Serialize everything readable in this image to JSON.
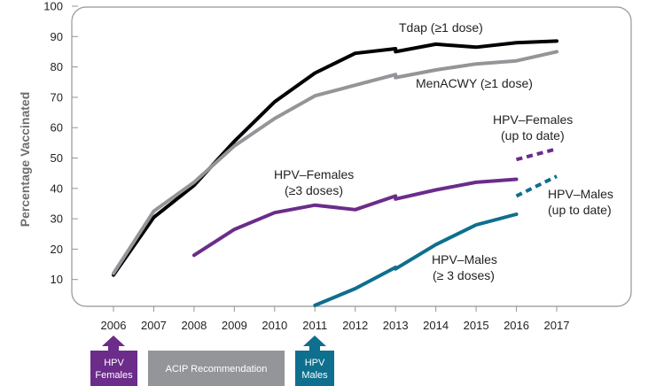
{
  "chart_data": {
    "type": "line",
    "ylabel": "Percentage Vaccinated",
    "ylim": [
      0,
      100
    ],
    "yticks": [
      10,
      20,
      30,
      40,
      50,
      60,
      70,
      80,
      90,
      100
    ],
    "x": [
      2006,
      2007,
      2008,
      2009,
      2010,
      2011,
      2012,
      2013,
      2014,
      2015,
      2016,
      2017
    ],
    "series": [
      {
        "name": "Tdap (≥1 dose)",
        "color": "#000000",
        "dashed": false,
        "segments": [
          [
            [
              2006,
              11.5
            ],
            [
              2007,
              30.5
            ],
            [
              2008,
              41
            ],
            [
              2009,
              55.5
            ],
            [
              2010,
              68.5
            ],
            [
              2011,
              78
            ],
            [
              2012,
              84.5
            ],
            [
              2013,
              86
            ]
          ],
          [
            [
              2013,
              85
            ],
            [
              2014,
              87.5
            ],
            [
              2015,
              86.5
            ],
            [
              2016,
              88
            ],
            [
              2017,
              88.5
            ]
          ]
        ]
      },
      {
        "name": "MenACWY (≥1 dose)",
        "color": "#939598",
        "dashed": false,
        "segments": [
          [
            [
              2006,
              12
            ],
            [
              2007,
              32.5
            ],
            [
              2008,
              42
            ],
            [
              2009,
              54
            ],
            [
              2010,
              63
            ],
            [
              2011,
              70.5
            ],
            [
              2012,
              74
            ],
            [
              2013,
              77.5
            ]
          ],
          [
            [
              2013,
              76.5
            ],
            [
              2014,
              79
            ],
            [
              2015,
              81
            ],
            [
              2016,
              82
            ],
            [
              2017,
              85
            ]
          ]
        ]
      },
      {
        "name": "HPV–Females (≥3 doses)",
        "color": "#6b2c8a",
        "dashed": false,
        "segments": [
          [
            [
              2008,
              18
            ],
            [
              2009,
              26.5
            ],
            [
              2010,
              32
            ],
            [
              2011,
              34.5
            ],
            [
              2012,
              33
            ],
            [
              2013,
              37.5
            ]
          ],
          [
            [
              2013,
              36.5
            ],
            [
              2014,
              39.5
            ],
            [
              2015,
              42
            ],
            [
              2016,
              43
            ]
          ]
        ]
      },
      {
        "name": "HPV–Females (up to date)",
        "color": "#6b2c8a",
        "dashed": true,
        "segments": [
          [
            [
              2016,
              49.5
            ],
            [
              2017,
              53
            ]
          ]
        ]
      },
      {
        "name": "HPV–Males (≥ 3 doses)",
        "color": "#0e6f8e",
        "dashed": false,
        "segments": [
          [
            [
              2011,
              1.5
            ],
            [
              2012,
              7
            ],
            [
              2013,
              14
            ]
          ],
          [
            [
              2013,
              13.5
            ],
            [
              2014,
              21.5
            ],
            [
              2015,
              28
            ],
            [
              2016,
              31.5
            ]
          ]
        ]
      },
      {
        "name": "HPV–Males (up to date)",
        "color": "#0e6f8e",
        "dashed": true,
        "segments": [
          [
            [
              2016,
              37.5
            ],
            [
              2017,
              44
            ]
          ]
        ]
      }
    ],
    "labels": {
      "tdap": "Tdap (≥1 dose)",
      "menacwy": "MenACWY (≥1 dose)",
      "hpvf_line1": "HPV–Females",
      "hpvf_line2": "(≥3 doses)",
      "hpvf_utd_line1": "HPV–Females",
      "hpvf_utd_line2": "(up to date)",
      "hpvm_utd_line1": "HPV–Males",
      "hpvm_utd_line2": "(up to date)",
      "hpvm_line1": "HPV–Males",
      "hpvm_line2": "(≥ 3 doses)"
    },
    "recommendations": {
      "hpv_females": {
        "year": 2006,
        "line1": "HPV",
        "line2": "Females",
        "color": "#6b2c8a"
      },
      "acip": {
        "label": "ACIP Recommendation",
        "color": "#939598"
      },
      "hpv_males": {
        "year": 2011,
        "line1": "HPV",
        "line2": "Males",
        "color": "#0e6f8e"
      }
    },
    "grid": false,
    "frame_color": "#939598"
  }
}
